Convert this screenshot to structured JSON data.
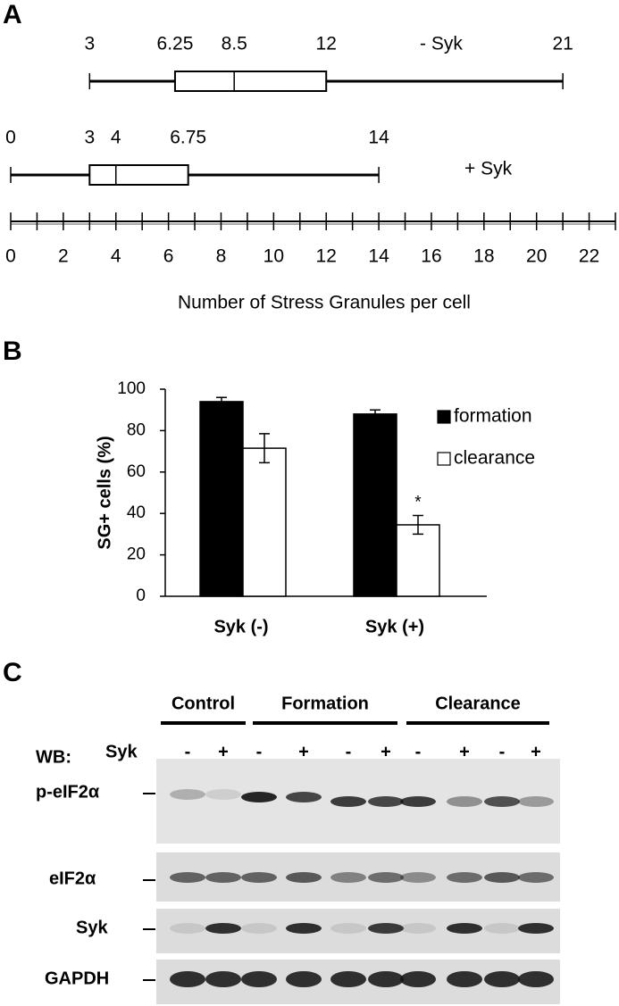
{
  "chart_data": [
    {
      "type": "boxplot",
      "label": "A",
      "xlabel": "Number of Stress Granules per cell",
      "boxes": [
        {
          "name": "- Syk",
          "values": [
            3,
            6.25,
            8.5,
            12,
            21
          ]
        },
        {
          "name": "+ Syk",
          "values": [
            0,
            3,
            4,
            6.75,
            14
          ]
        }
      ],
      "xlim": [
        0,
        23
      ],
      "xticks": [
        0,
        2,
        4,
        6,
        8,
        10,
        12,
        14,
        16,
        18,
        20,
        22
      ],
      "minor_xticks": [
        1,
        3,
        5,
        7,
        9,
        11,
        13,
        15,
        17,
        19,
        21,
        23
      ]
    },
    {
      "type": "bar",
      "label": "B",
      "ylabel": "SG+ cells (%)",
      "categories": [
        "Syk (-)",
        "Syk (+)"
      ],
      "series": [
        {
          "name": "formation",
          "color": "#000000",
          "values": [
            94,
            88
          ],
          "errors": [
            2,
            2
          ]
        },
        {
          "name": "clearance",
          "color": "#ffffff",
          "values": [
            71.5,
            34.5
          ],
          "errors": [
            7,
            4.5
          ]
        }
      ],
      "ylim": [
        0,
        100
      ],
      "yticks": [
        0,
        20,
        40,
        60,
        80,
        100
      ],
      "annotation": "*"
    }
  ],
  "blot": {
    "label": "C",
    "groups": [
      "Control",
      "Formation",
      "Clearance"
    ],
    "wb_label": "WB:",
    "treatment_label": "Syk",
    "lanes": [
      "-",
      "+",
      "-",
      "+",
      "-",
      "+",
      "-",
      "+",
      "-",
      "+"
    ],
    "rows": [
      "p-eIF2α",
      "eIF2α",
      "Syk",
      "GAPDH"
    ]
  }
}
